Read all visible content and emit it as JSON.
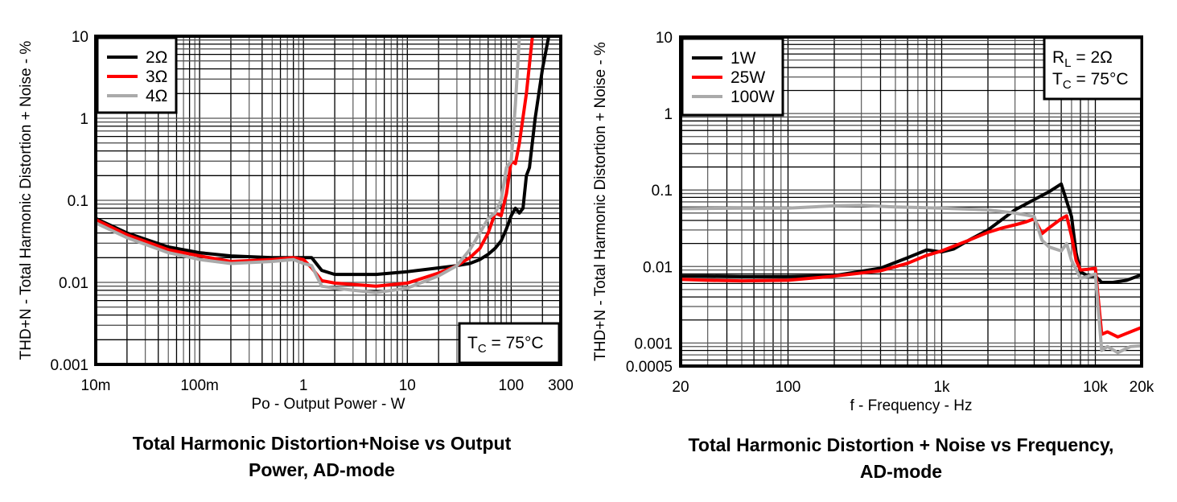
{
  "chart_data": [
    {
      "type": "line",
      "title": "Total Harmonic Distortion+Noise vs Output Power, AD-mode",
      "caption_lines": [
        "Total Harmonic Distortion+Noise vs Output",
        "Power, AD-mode"
      ],
      "xlabel": "Po - Output Power - W",
      "ylabel": "THD+N - Total Harmonic Distortion + Noise - %",
      "xscale": "log",
      "yscale": "log",
      "xlim": [
        0.01,
        300
      ],
      "ylim": [
        0.001,
        10
      ],
      "x_ticks": [
        0.01,
        0.1,
        1,
        10,
        100,
        300
      ],
      "x_tick_labels": [
        "10m",
        "100m",
        "1",
        "10",
        "100",
        "300"
      ],
      "y_ticks": [
        0.001,
        0.01,
        0.1,
        1,
        10
      ],
      "y_tick_labels": [
        "0.001",
        "0.01",
        "0.1",
        "1",
        "10"
      ],
      "grid": true,
      "legend_position": "top-left",
      "annotation": {
        "position": "bottom-right",
        "parts": [
          "T",
          "C",
          " = 75°C"
        ]
      },
      "series": [
        {
          "name": "2Ω",
          "color": "#000000",
          "x": [
            0.01,
            0.02,
            0.05,
            0.1,
            0.2,
            0.5,
            0.8,
            1.0,
            1.2,
            1.5,
            2,
            5,
            10,
            20,
            30,
            40,
            50,
            60,
            70,
            80,
            90,
            100,
            110,
            120,
            130,
            140,
            150,
            170,
            200,
            230
          ],
          "y": [
            0.06,
            0.04,
            0.027,
            0.023,
            0.021,
            0.02,
            0.02,
            0.02,
            0.02,
            0.014,
            0.0125,
            0.0125,
            0.0135,
            0.015,
            0.016,
            0.017,
            0.019,
            0.022,
            0.026,
            0.032,
            0.045,
            0.065,
            0.08,
            0.07,
            0.08,
            0.2,
            0.25,
            1.0,
            4,
            10
          ]
        },
        {
          "name": "3Ω",
          "color": "#ff0000",
          "x": [
            0.01,
            0.02,
            0.05,
            0.1,
            0.2,
            0.5,
            0.8,
            1.0,
            1.2,
            1.5,
            2,
            5,
            10,
            20,
            30,
            40,
            50,
            60,
            70,
            80,
            90,
            100,
            110,
            120,
            140,
            160
          ],
          "y": [
            0.058,
            0.038,
            0.025,
            0.021,
            0.018,
            0.019,
            0.02,
            0.019,
            0.015,
            0.0105,
            0.0098,
            0.009,
            0.0098,
            0.013,
            0.016,
            0.02,
            0.026,
            0.04,
            0.07,
            0.065,
            0.12,
            0.3,
            0.28,
            0.5,
            2,
            10
          ]
        },
        {
          "name": "4Ω",
          "color": "#aaaaaa",
          "x": [
            0.01,
            0.02,
            0.05,
            0.1,
            0.2,
            0.5,
            0.8,
            1.0,
            1.2,
            1.5,
            2,
            5,
            10,
            20,
            30,
            40,
            50,
            60,
            70,
            80,
            90,
            100,
            110,
            120
          ],
          "y": [
            0.053,
            0.035,
            0.023,
            0.019,
            0.017,
            0.018,
            0.019,
            0.017,
            0.016,
            0.009,
            0.0085,
            0.0075,
            0.0085,
            0.012,
            0.016,
            0.025,
            0.04,
            0.06,
            0.07,
            0.1,
            0.25,
            0.3,
            1.5,
            10
          ]
        }
      ]
    },
    {
      "type": "line",
      "title": "Total Harmonic Distortion + Noise vs Frequency, AD-mode",
      "caption_lines": [
        "Total Harmonic Distortion + Noise vs Frequency,",
        "AD-mode"
      ],
      "xlabel": "f - Frequency - Hz",
      "ylabel": "THD+N - Total Harmonic Distortion + Noise - %",
      "xscale": "log",
      "yscale": "log",
      "xlim": [
        20,
        20000
      ],
      "ylim": [
        0.0005,
        10
      ],
      "x_ticks": [
        20,
        100,
        1000,
        10000,
        20000
      ],
      "x_tick_labels": [
        "20",
        "100",
        "1k",
        "10k",
        "20k"
      ],
      "y_ticks": [
        0.0005,
        0.001,
        0.01,
        0.1,
        1,
        10
      ],
      "y_tick_labels": [
        "0.0005",
        "0.001",
        "0.01",
        "0.1",
        "1",
        "10"
      ],
      "grid": true,
      "legend_position": "top-left",
      "annotation": {
        "position": "top-right",
        "lines": [
          [
            "R",
            "L",
            " = 2Ω"
          ],
          [
            "T",
            "C",
            " = 75°C"
          ]
        ]
      },
      "series": [
        {
          "name": "1W",
          "color": "#000000",
          "x": [
            20,
            30,
            50,
            100,
            200,
            400,
            600,
            800,
            1000,
            1200,
            1500,
            2000,
            3000,
            4000,
            5000,
            6000,
            7000,
            7500,
            8000,
            9000,
            10000,
            11000,
            13000,
            16000,
            20000
          ],
          "y": [
            0.0075,
            0.0075,
            0.0074,
            0.0074,
            0.0076,
            0.0095,
            0.013,
            0.0165,
            0.0155,
            0.017,
            0.022,
            0.03,
            0.055,
            0.075,
            0.095,
            0.12,
            0.045,
            0.015,
            0.0085,
            0.0075,
            0.0075,
            0.0062,
            0.0062,
            0.0066,
            0.0078
          ]
        },
        {
          "name": "25W",
          "color": "#ff0000",
          "x": [
            20,
            30,
            50,
            100,
            200,
            400,
            600,
            800,
            1000,
            1500,
            2000,
            2500,
            3000,
            3500,
            4000,
            4500,
            5000,
            6000,
            6500,
            7000,
            7500,
            8000,
            9000,
            10000,
            11000,
            12000,
            14000,
            20000
          ],
          "y": [
            0.0068,
            0.0066,
            0.0065,
            0.0066,
            0.0075,
            0.0088,
            0.011,
            0.014,
            0.016,
            0.022,
            0.028,
            0.032,
            0.035,
            0.038,
            0.042,
            0.027,
            0.032,
            0.042,
            0.046,
            0.025,
            0.012,
            0.009,
            0.0092,
            0.0095,
            0.0013,
            0.0014,
            0.0012,
            0.0016
          ]
        },
        {
          "name": "100W",
          "color": "#aaaaaa",
          "x": [
            20,
            50,
            100,
            200,
            300,
            500,
            1000,
            2000,
            3000,
            4000,
            4500,
            5000,
            6000,
            6500,
            7000,
            8000,
            9000,
            10000,
            11000,
            12000,
            14000,
            17000,
            20000
          ],
          "y": [
            0.057,
            0.058,
            0.058,
            0.062,
            0.063,
            0.06,
            0.058,
            0.055,
            0.05,
            0.045,
            0.022,
            0.018,
            0.016,
            0.02,
            0.012,
            0.007,
            0.0075,
            0.008,
            0.0008,
            0.0009,
            0.00075,
            0.0009,
            0.00092
          ]
        }
      ]
    }
  ]
}
